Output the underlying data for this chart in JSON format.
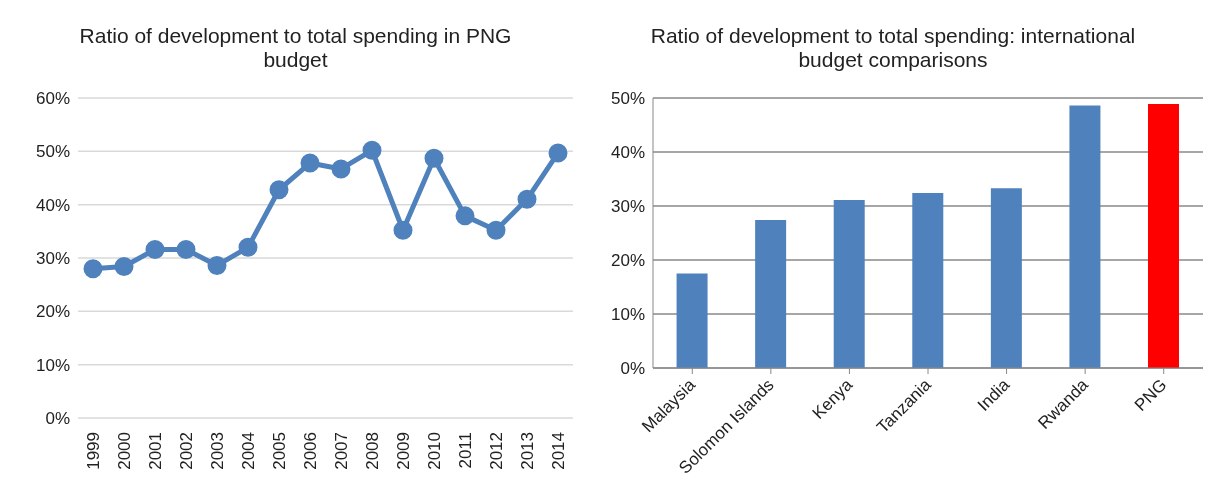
{
  "chart_data": [
    {
      "type": "line",
      "title": "Ratio of development to total spending in PNG budget",
      "categories": [
        "1999",
        "2000",
        "2001",
        "2002",
        "2003",
        "2004",
        "2005",
        "2006",
        "2007",
        "2008",
        "2009",
        "2010",
        "2011",
        "2012",
        "2013",
        "2014"
      ],
      "series": [
        {
          "color": "#4f81bd",
          "values": [
            28,
            28.4,
            31.6,
            31.6,
            28.6,
            32,
            42.8,
            47.8,
            46.7,
            50.2,
            35.2,
            48.7,
            37.9,
            35.2,
            41,
            49.7
          ]
        }
      ],
      "ylim": [
        0,
        60
      ],
      "yticks": [
        {
          "value": 0,
          "label": "0%"
        },
        {
          "value": 10,
          "label": "10%"
        },
        {
          "value": 20,
          "label": "20%"
        },
        {
          "value": 30,
          "label": "30%"
        },
        {
          "value": 40,
          "label": "40%"
        },
        {
          "value": 50,
          "label": "50%"
        },
        {
          "value": 60,
          "label": "60%"
        }
      ],
      "grid": "y",
      "marker": "circle",
      "line_style": "solid"
    },
    {
      "type": "bar",
      "title": "Ratio of development to total spending: international budget comparisons",
      "categories": [
        "Malaysia",
        "Solomon Islands",
        "Kenya",
        "Tanzania",
        "India",
        "Rwanda",
        "PNG"
      ],
      "values": [
        17.5,
        27.4,
        31.1,
        32.4,
        33.3,
        48.6,
        48.9
      ],
      "colors": [
        "#4f81bd",
        "#4f81bd",
        "#4f81bd",
        "#4f81bd",
        "#4f81bd",
        "#4f81bd",
        "#ff0000"
      ],
      "ylim": [
        0,
        50
      ],
      "yticks": [
        {
          "value": 0,
          "label": "0%"
        },
        {
          "value": 10,
          "label": "10%"
        },
        {
          "value": 20,
          "label": "20%"
        },
        {
          "value": 30,
          "label": "30%"
        },
        {
          "value": 40,
          "label": "40%"
        },
        {
          "value": 50,
          "label": "50%"
        }
      ],
      "grid": "y"
    }
  ]
}
